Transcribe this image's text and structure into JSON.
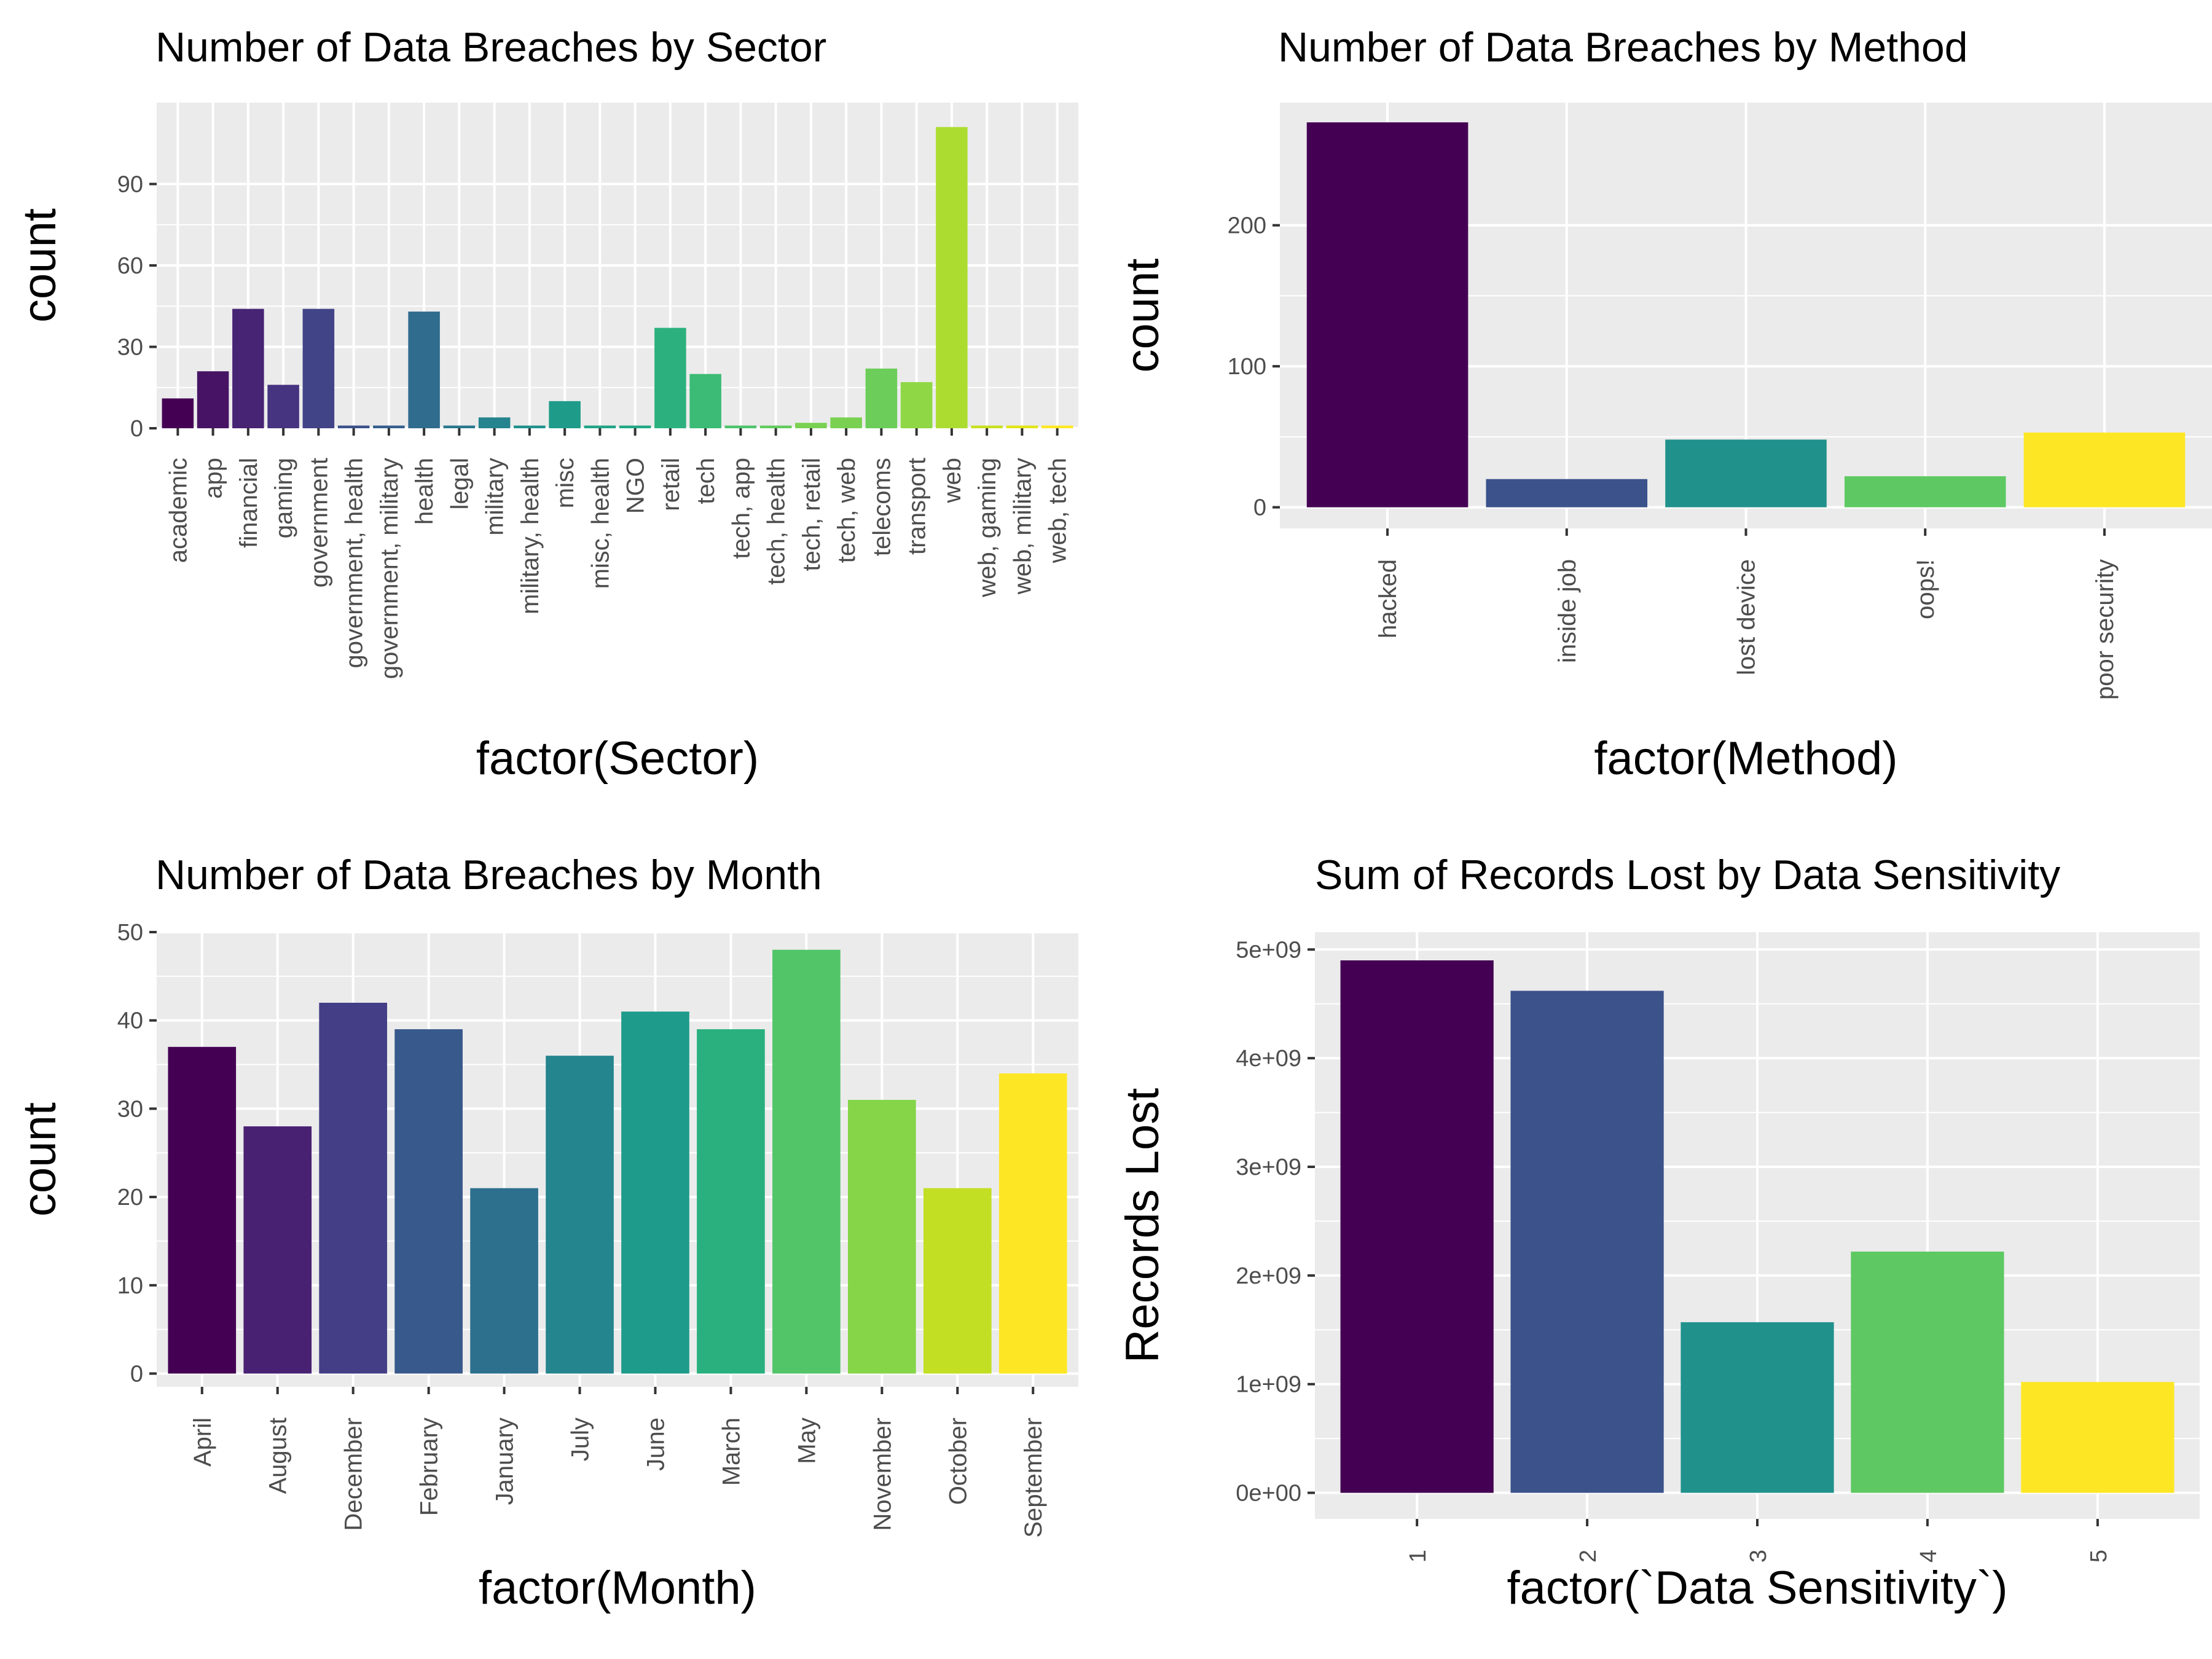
{
  "chart_data": [
    {
      "type": "bar",
      "title": "Number of Data Breaches by Sector",
      "xlabel": "factor(Sector)",
      "ylabel": "count",
      "ylim": [
        0,
        120
      ],
      "yticks": [
        "0",
        "30",
        "60",
        "90"
      ],
      "categories": [
        "academic",
        "app",
        "financial",
        "gaming",
        "government",
        "government, health",
        "government, military",
        "health",
        "legal",
        "military",
        "military, health",
        "misc",
        "misc, health",
        "NGO",
        "retail",
        "tech",
        "tech, app",
        "tech, health",
        "tech, retail",
        "tech, web",
        "telecoms",
        "transport",
        "web",
        "web, gaming",
        "web, military",
        "web, tech"
      ],
      "values": [
        11,
        21,
        44,
        16,
        44,
        1,
        1,
        43,
        1,
        4,
        1,
        10,
        1,
        1,
        37,
        20,
        1,
        1,
        2,
        4,
        22,
        17,
        111,
        1,
        1,
        1
      ],
      "colors": [
        "#440154",
        "#471365",
        "#482475",
        "#463480",
        "#414487",
        "#3b528b",
        "#355f8d",
        "#2f6c8e",
        "#2a788e",
        "#25848e",
        "#21918c",
        "#1e9c89",
        "#20a486",
        "#22a884",
        "#2cb17e",
        "#3bbb75",
        "#4ec36b",
        "#63cb5f",
        "#7ad151",
        "#7ad151",
        "#6ccd5a",
        "#8fd744",
        "#addc30",
        "#c8e020",
        "#e2e418",
        "#fde725"
      ],
      "grid": true,
      "legend": "none"
    },
    {
      "type": "bar",
      "title": "Number of Data Breaches by Method",
      "xlabel": "factor(Method)",
      "ylabel": "count",
      "ylim": [
        -15,
        287
      ],
      "yticks": [
        "0",
        "100",
        "200"
      ],
      "categories": [
        "hacked",
        "inside job",
        "lost device",
        "oops!",
        "poor security"
      ],
      "values": [
        273,
        20,
        48,
        22,
        53
      ],
      "colors": [
        "#440154",
        "#3b528b",
        "#21918c",
        "#5ec962",
        "#fde725"
      ],
      "grid": true,
      "legend": "none"
    },
    {
      "type": "bar",
      "title": "Number of Data Breaches by Month",
      "xlabel": "factor(Month)",
      "ylabel": "count",
      "ylim": [
        -1.5,
        50
      ],
      "yticks": [
        "0",
        "10",
        "20",
        "30",
        "40",
        "50"
      ],
      "categories": [
        "April",
        "August",
        "December",
        "February",
        "January",
        "July",
        "June",
        "March",
        "May",
        "November",
        "October",
        "September"
      ],
      "values": [
        37,
        28,
        42,
        39,
        21,
        36,
        41,
        39,
        48,
        31,
        21,
        34
      ],
      "colors": [
        "#440154",
        "#482173",
        "#433e85",
        "#38598c",
        "#2d708e",
        "#25858e",
        "#1e9b8a",
        "#2ab07f",
        "#52c569",
        "#86d549",
        "#c2df23",
        "#fde725"
      ],
      "grid": true,
      "legend": "none"
    },
    {
      "type": "bar",
      "title": "Sum of Records Lost by Data Sensitivity",
      "xlabel": "factor(`Data Sensitivity`)",
      "ylabel": "Records Lost",
      "ylim": [
        -240000000,
        5160000000
      ],
      "yticks": [
        "0e+00",
        "1e+09",
        "2e+09",
        "3e+09",
        "4e+09",
        "5e+09"
      ],
      "categories": [
        "1",
        "2",
        "3",
        "4",
        "5"
      ],
      "values": [
        4900000000,
        4620000000,
        1570000000,
        2220000000,
        1020000000
      ],
      "colors": [
        "#440154",
        "#3b528b",
        "#21918c",
        "#5ec962",
        "#fde725"
      ],
      "grid": true,
      "legend": "none"
    }
  ]
}
